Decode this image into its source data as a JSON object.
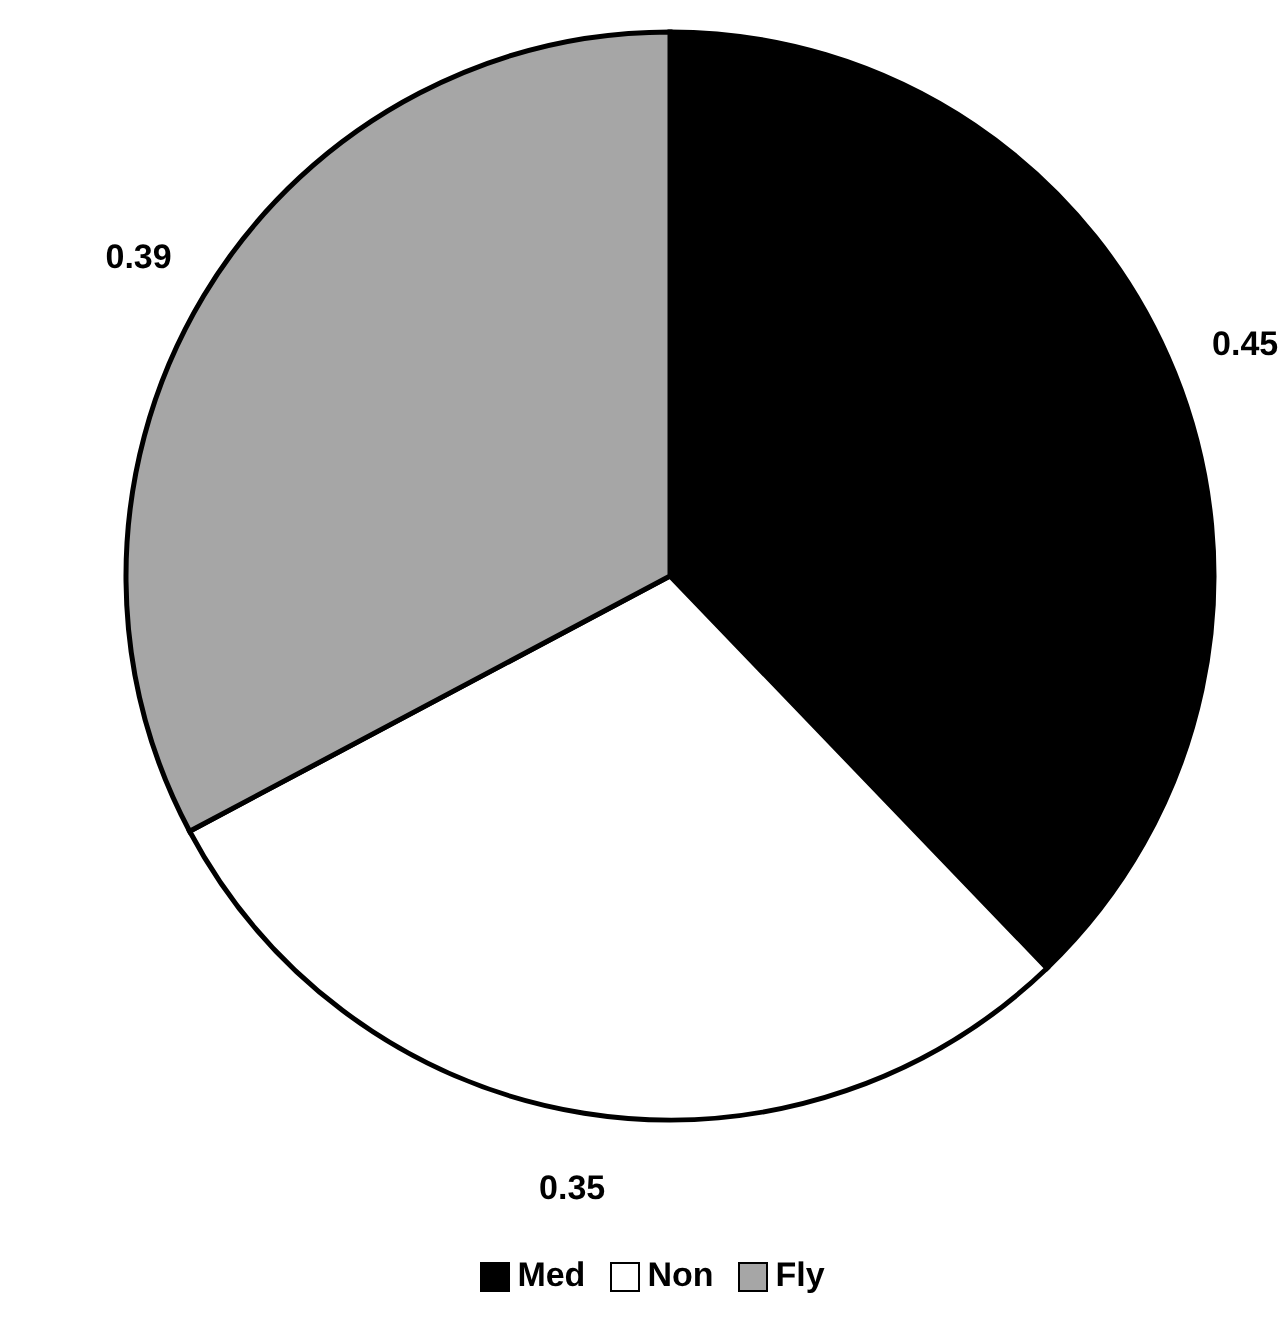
{
  "chart_data": {
    "type": "pie",
    "categories": [
      "Med",
      "Non",
      "Fly"
    ],
    "values": [
      0.45,
      0.35,
      0.39
    ],
    "colors": [
      "#000000",
      "#ffffff",
      "#a6a6a6"
    ],
    "data_labels": true,
    "legend": "bottom"
  }
}
